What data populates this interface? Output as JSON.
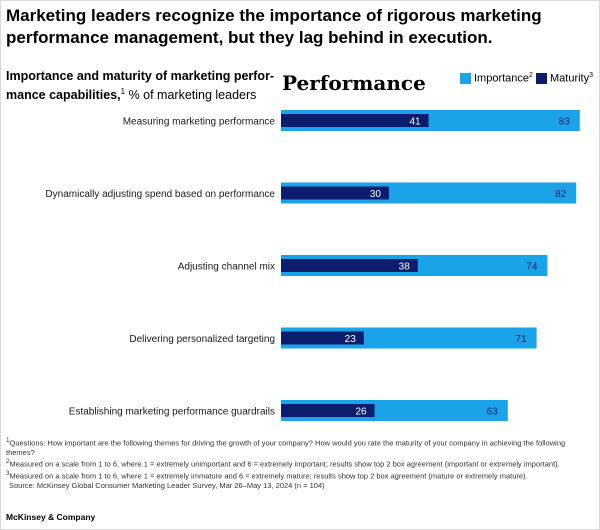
{
  "headline": "Marketing leaders recognize the importance of rigorous marketing performance management, but they lag behind in execution.",
  "subtitle": {
    "bold": "Importance and maturity of marketing perfor-mance capabilities,",
    "sup": "1",
    "rest": " % of marketing leaders"
  },
  "section_label": "Performance",
  "colors": {
    "importance": "#1aa3e8",
    "maturity": "#0c1d6e",
    "label_text": "#ffffff",
    "importance_value_text": "#0c1d6e"
  },
  "legend": [
    {
      "label": "Importance",
      "sup": "2",
      "color": "#1aa3e8"
    },
    {
      "label": "Maturity",
      "sup": "3",
      "color": "#0c1d6e"
    }
  ],
  "chart_data": {
    "type": "bar",
    "orientation": "horizontal",
    "categories": [
      "Measuring marketing performance",
      "Dynamically adjusting spend based on performance",
      "Adjusting channel mix",
      "Delivering personalized targeting",
      "Establishing marketing performance guardrails"
    ],
    "series": [
      {
        "name": "Importance",
        "values": [
          83,
          82,
          74,
          71,
          63
        ]
      },
      {
        "name": "Maturity",
        "values": [
          41,
          30,
          38,
          23,
          26
        ]
      }
    ],
    "xlim": [
      0,
      100
    ],
    "grid": false,
    "legend_position": "top-right"
  },
  "footnotes": [
    {
      "sup": "1",
      "text": "Questions: How important are the following themes for driving the growth of your company? How would you rate the maturity of your company in achieving the following themes?"
    },
    {
      "sup": "2",
      "text": "Measured on a scale from 1 to 6, where 1 = extremely unimportant and 6 = extremely important; results show top 2 box agreement (important or extremely important)."
    },
    {
      "sup": "3",
      "text": "Measured on a scale from 1 to 6, where 1 = extremely immature and 6 = extremely mature; results show top 2 box agreement (mature or extremely mature)."
    }
  ],
  "source": "Source: McKinsey Global Consumer Marketing Leader Survey, Mar 26–May 13, 2024 (n = 104)",
  "brand": "McKinsey & Company"
}
